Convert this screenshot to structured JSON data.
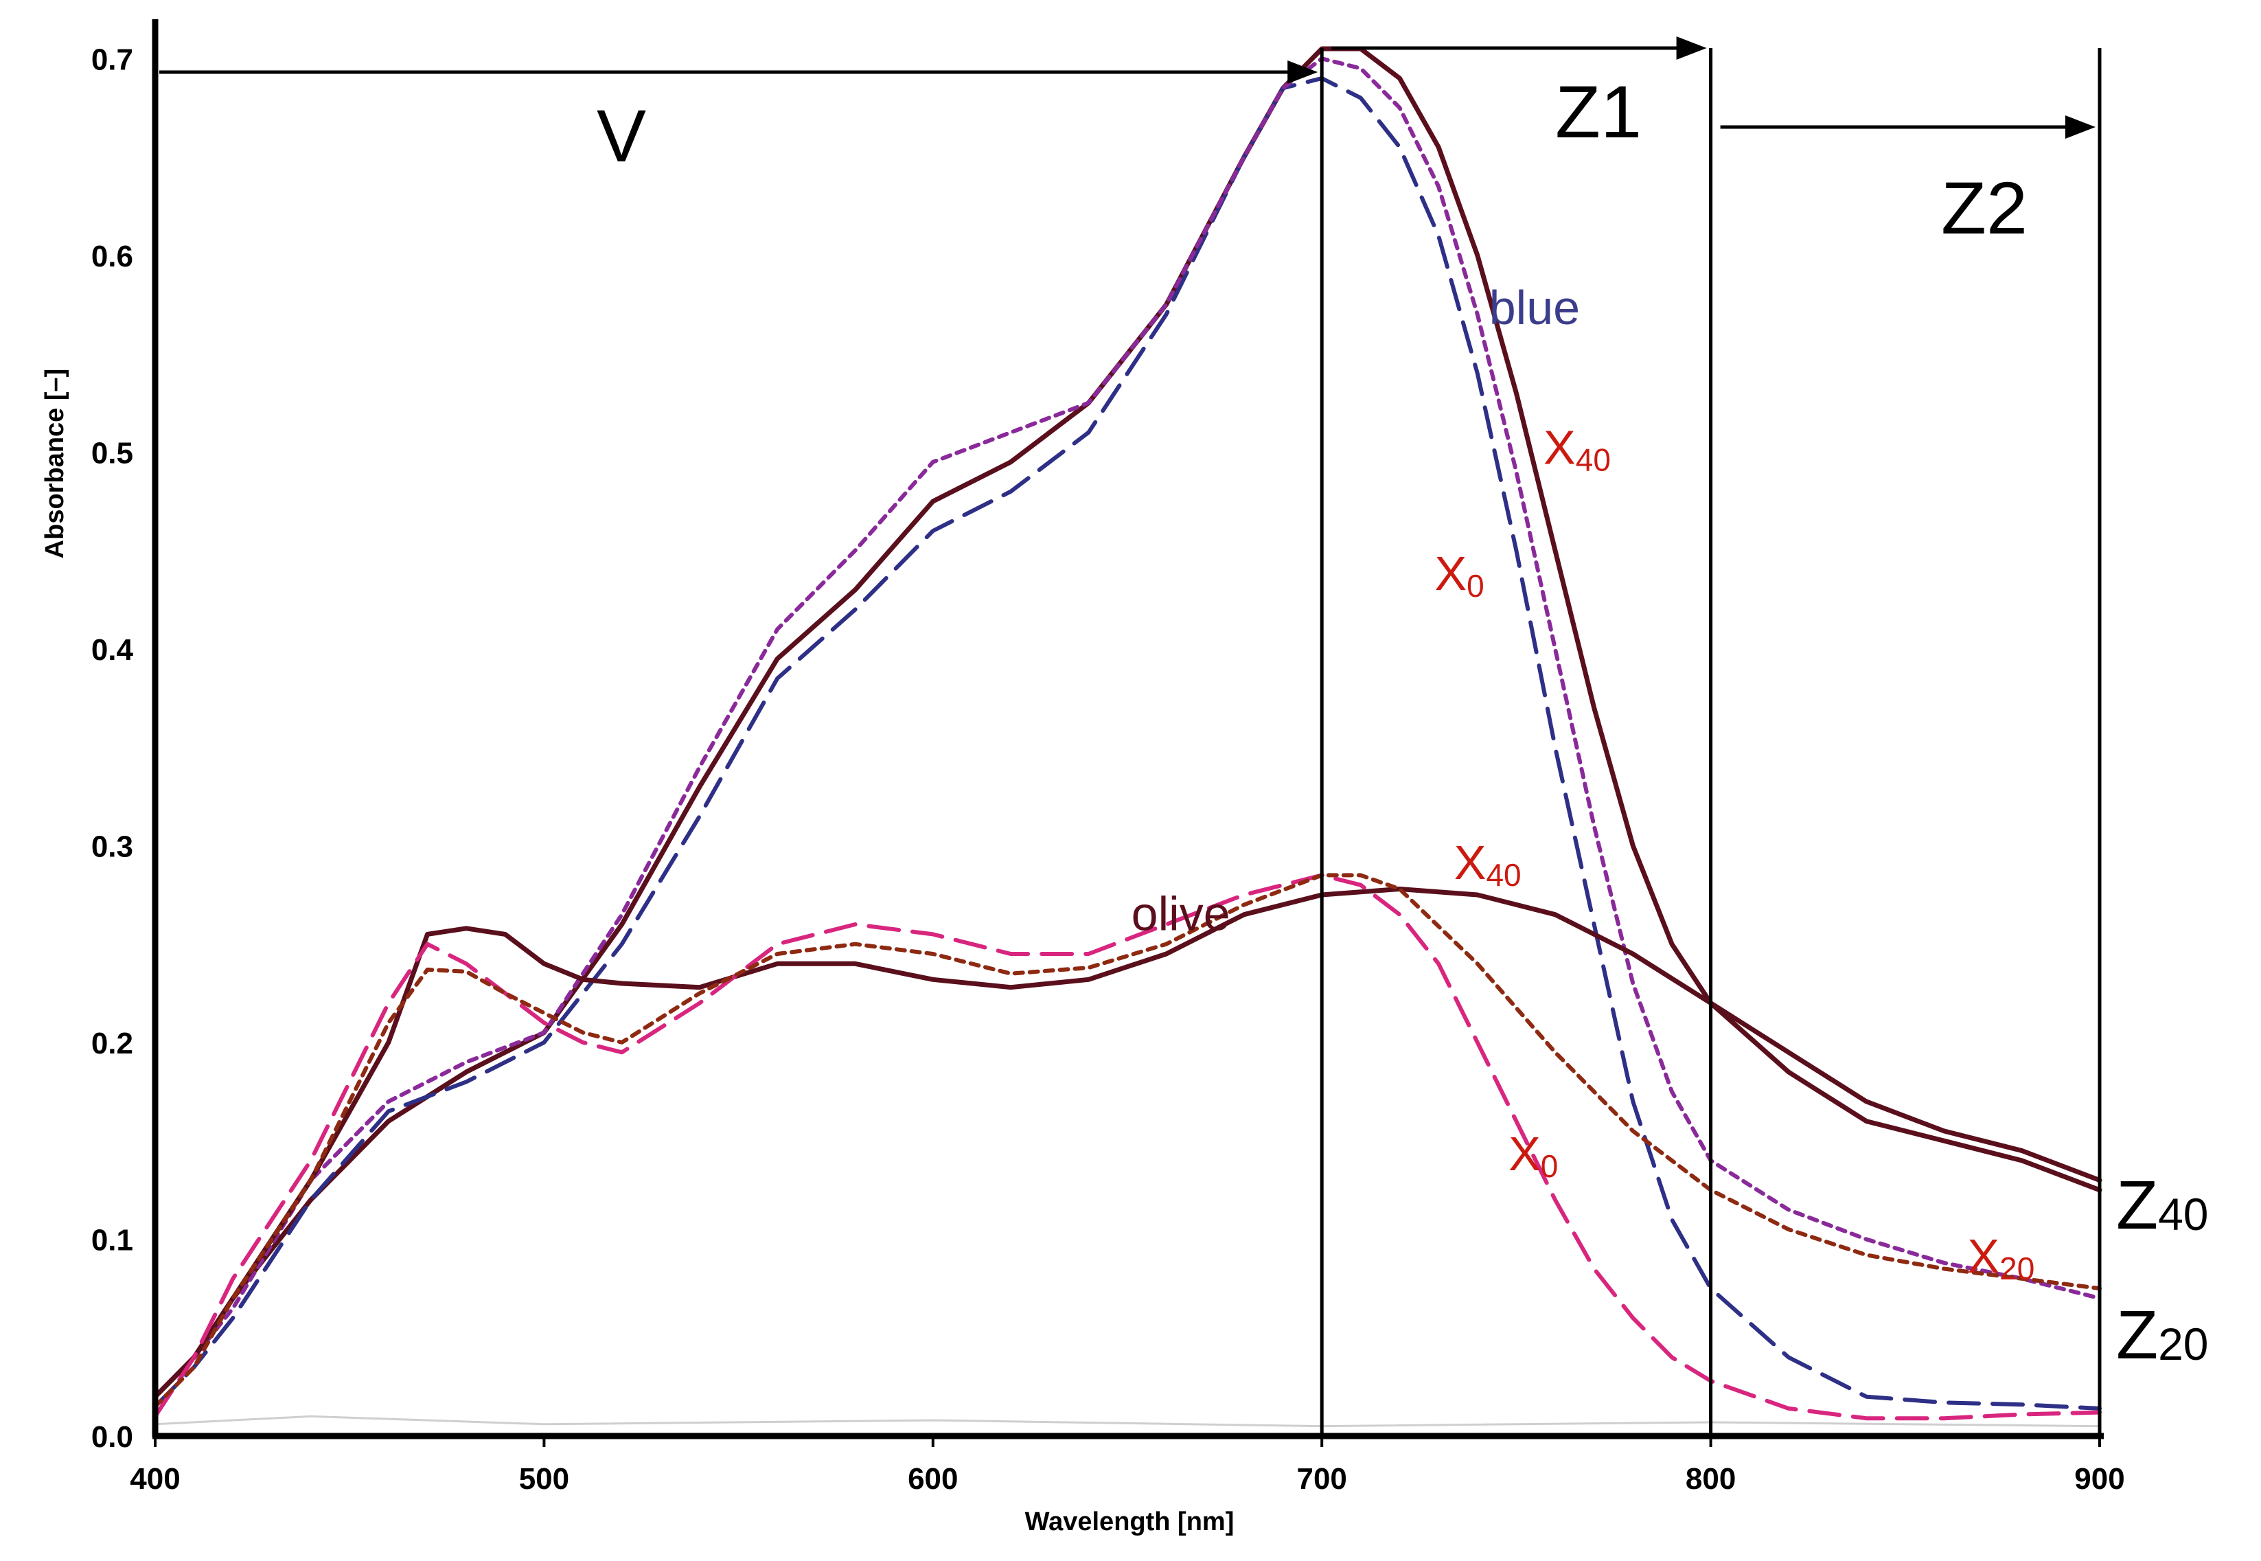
{
  "chart_data": {
    "type": "line",
    "xlabel": "Wavelength [nm]",
    "ylabel": "Absorbance [–]",
    "xlim": [
      400,
      900
    ],
    "ylim": [
      0,
      0.72
    ],
    "x_ticks": [
      "400",
      "500",
      "600",
      "700",
      "800",
      "900"
    ],
    "y_ticks": [
      "0.0",
      "0.1",
      "0.2",
      "0.3",
      "0.4",
      "0.5",
      "0.6",
      "0.7"
    ],
    "regions": [
      {
        "label": "V",
        "from": 400,
        "to": 700
      },
      {
        "label": "Z1",
        "from": 700,
        "to": 800
      },
      {
        "label": "Z2",
        "from": 800,
        "to": 900
      }
    ],
    "boundaries": [
      700,
      800,
      900
    ],
    "colors": {
      "solid": "#5a0f1c",
      "blue_dash": "#2e2f86",
      "purple_dot": "#8a2a9a",
      "pink_dash": "#d8267f",
      "red_dot": "#8e2a12",
      "label_red": "#cc1a10",
      "label_blue": "#3b3d8c",
      "baseline": "#cfcfcf"
    },
    "series": [
      {
        "name": "blue X40",
        "group": "blue",
        "style": "solid",
        "color": "#5a0f1c",
        "x": [
          400,
          410,
          420,
          440,
          460,
          480,
          500,
          520,
          540,
          560,
          580,
          600,
          620,
          640,
          660,
          680,
          690,
          700,
          710,
          720,
          730,
          740,
          750,
          760,
          770,
          780,
          790,
          800,
          820,
          840,
          860,
          880,
          900
        ],
        "y": [
          0.02,
          0.04,
          0.07,
          0.12,
          0.16,
          0.185,
          0.205,
          0.26,
          0.33,
          0.395,
          0.43,
          0.475,
          0.495,
          0.525,
          0.575,
          0.65,
          0.685,
          0.705,
          0.705,
          0.69,
          0.655,
          0.6,
          0.53,
          0.45,
          0.37,
          0.3,
          0.25,
          0.22,
          0.185,
          0.16,
          0.15,
          0.14,
          0.125
        ]
      },
      {
        "name": "blue X0",
        "group": "blue",
        "style": "dashed",
        "color": "#2e2f86",
        "x": [
          400,
          410,
          420,
          440,
          460,
          480,
          500,
          520,
          540,
          560,
          580,
          600,
          620,
          640,
          660,
          680,
          690,
          700,
          710,
          720,
          730,
          740,
          750,
          760,
          770,
          780,
          790,
          800,
          820,
          840,
          860,
          880,
          900
        ],
        "y": [
          0.015,
          0.035,
          0.06,
          0.12,
          0.165,
          0.18,
          0.2,
          0.25,
          0.315,
          0.385,
          0.42,
          0.46,
          0.48,
          0.51,
          0.57,
          0.65,
          0.685,
          0.69,
          0.68,
          0.655,
          0.61,
          0.54,
          0.45,
          0.35,
          0.26,
          0.17,
          0.11,
          0.075,
          0.04,
          0.02,
          0.017,
          0.016,
          0.014
        ]
      },
      {
        "name": "blue X20",
        "group": "blue",
        "style": "dotted",
        "color": "#8a2a9a",
        "x": [
          400,
          410,
          420,
          440,
          460,
          480,
          500,
          520,
          540,
          560,
          580,
          600,
          620,
          640,
          660,
          680,
          690,
          700,
          710,
          720,
          730,
          740,
          750,
          760,
          770,
          780,
          790,
          800,
          820,
          840,
          860,
          880,
          900
        ],
        "y": [
          0.02,
          0.04,
          0.065,
          0.13,
          0.17,
          0.19,
          0.205,
          0.265,
          0.34,
          0.41,
          0.45,
          0.495,
          0.51,
          0.525,
          0.575,
          0.65,
          0.685,
          0.7,
          0.695,
          0.675,
          0.635,
          0.57,
          0.49,
          0.4,
          0.31,
          0.23,
          0.175,
          0.14,
          0.115,
          0.1,
          0.088,
          0.08,
          0.07
        ]
      },
      {
        "name": "olive X40",
        "group": "olive",
        "style": "solid",
        "color": "#5a0f1c",
        "x": [
          400,
          410,
          420,
          440,
          460,
          470,
          480,
          490,
          500,
          510,
          520,
          540,
          560,
          580,
          600,
          620,
          640,
          660,
          680,
          700,
          720,
          740,
          760,
          780,
          800,
          820,
          840,
          860,
          880,
          900
        ],
        "y": [
          0.02,
          0.04,
          0.07,
          0.13,
          0.2,
          0.255,
          0.258,
          0.255,
          0.24,
          0.232,
          0.23,
          0.228,
          0.24,
          0.24,
          0.232,
          0.228,
          0.232,
          0.245,
          0.265,
          0.275,
          0.278,
          0.275,
          0.265,
          0.245,
          0.22,
          0.195,
          0.17,
          0.155,
          0.145,
          0.13
        ]
      },
      {
        "name": "olive X0",
        "group": "olive",
        "style": "dashed",
        "color": "#d8267f",
        "x": [
          400,
          410,
          420,
          440,
          460,
          470,
          480,
          490,
          500,
          510,
          520,
          540,
          560,
          580,
          600,
          620,
          640,
          660,
          680,
          700,
          710,
          720,
          730,
          740,
          750,
          760,
          770,
          780,
          790,
          800,
          820,
          840,
          860,
          880,
          900
        ],
        "y": [
          0.01,
          0.04,
          0.08,
          0.14,
          0.22,
          0.25,
          0.24,
          0.225,
          0.21,
          0.2,
          0.195,
          0.22,
          0.25,
          0.26,
          0.255,
          0.245,
          0.245,
          0.26,
          0.275,
          0.285,
          0.28,
          0.265,
          0.24,
          0.2,
          0.16,
          0.12,
          0.085,
          0.06,
          0.04,
          0.028,
          0.014,
          0.009,
          0.009,
          0.011,
          0.012
        ]
      },
      {
        "name": "olive X20",
        "group": "olive",
        "style": "dotted",
        "color": "#8e2a12",
        "x": [
          400,
          410,
          420,
          440,
          460,
          470,
          480,
          490,
          500,
          510,
          520,
          540,
          560,
          580,
          600,
          620,
          640,
          660,
          680,
          700,
          710,
          720,
          740,
          760,
          780,
          800,
          820,
          840,
          860,
          880,
          900
        ],
        "y": [
          0.015,
          0.035,
          0.07,
          0.13,
          0.21,
          0.237,
          0.236,
          0.225,
          0.215,
          0.205,
          0.2,
          0.225,
          0.245,
          0.25,
          0.245,
          0.235,
          0.238,
          0.25,
          0.27,
          0.285,
          0.285,
          0.278,
          0.24,
          0.195,
          0.155,
          0.125,
          0.105,
          0.092,
          0.085,
          0.08,
          0.075
        ]
      }
    ],
    "annotations": [
      {
        "base": "blue",
        "sub": "",
        "color_key": "label_blue",
        "x": 743,
        "y": 0.565
      },
      {
        "base": "X",
        "sub": "40",
        "color_key": "label_red",
        "x": 757,
        "y": 0.494
      },
      {
        "base": "X",
        "sub": "0",
        "color_key": "label_red",
        "x": 729,
        "y": 0.43
      },
      {
        "base": "olive",
        "sub": "",
        "color_key": "solid",
        "x": 651,
        "y": 0.257
      },
      {
        "base": "X",
        "sub": "40",
        "color_key": "label_red",
        "x": 734,
        "y": 0.283
      },
      {
        "base": "X",
        "sub": "0",
        "color_key": "label_red",
        "x": 748,
        "y": 0.135
      },
      {
        "base": "X",
        "sub": "20",
        "color_key": "label_red",
        "x": 866,
        "y": 0.083
      }
    ],
    "side_labels": [
      {
        "base": "Z",
        "sub": "40",
        "y": 0.118
      },
      {
        "base": "Z",
        "sub": "20",
        "y": 0.052
      }
    ]
  }
}
